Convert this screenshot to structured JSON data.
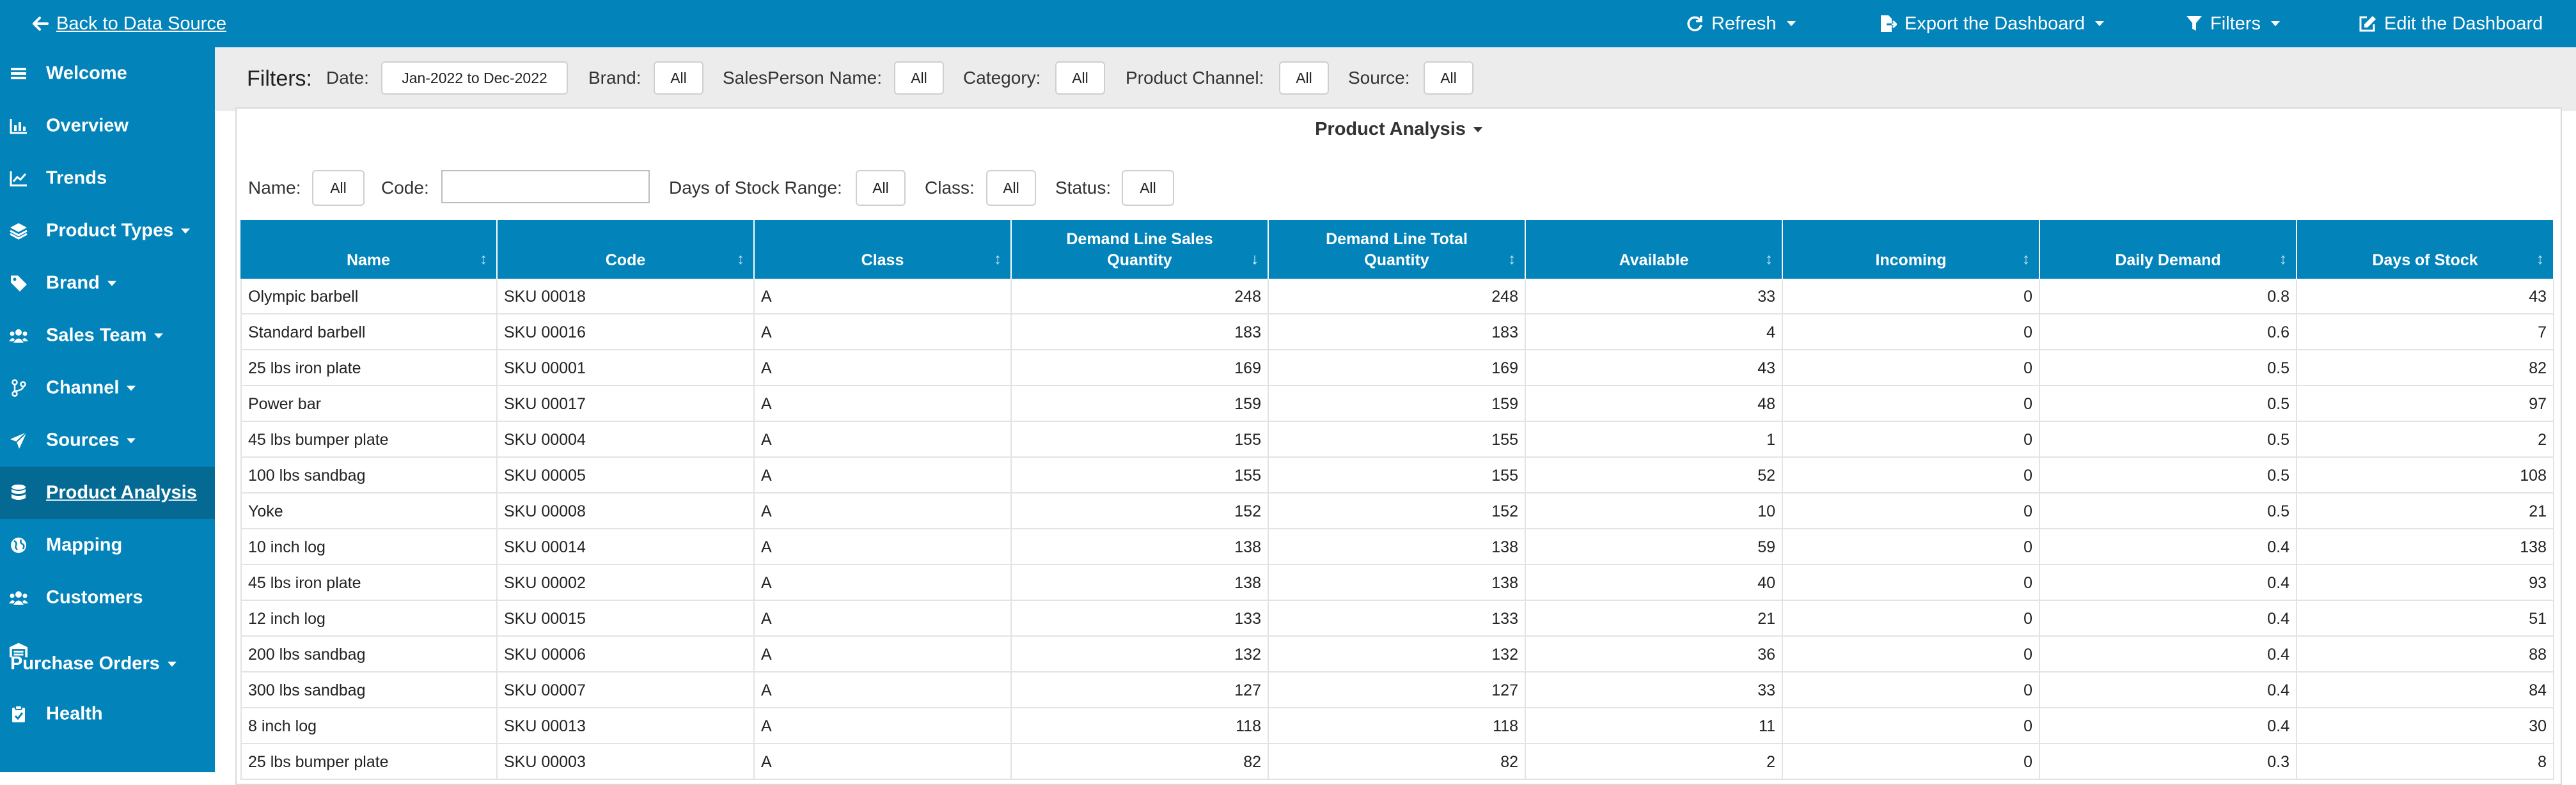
{
  "topbar": {
    "back_label": "Back to Data Source",
    "refresh_label": "Refresh",
    "export_label": "Export the Dashboard",
    "filters_label": "Filters",
    "edit_label": "Edit the Dashboard"
  },
  "sidebar": {
    "items": [
      {
        "label": "Welcome",
        "icon": "menu-icon"
      },
      {
        "label": "Overview",
        "icon": "chart-icon"
      },
      {
        "label": "Trends",
        "icon": "line-chart-icon"
      },
      {
        "label": "Product Types",
        "icon": "layers-icon",
        "caret": true
      },
      {
        "label": "Brand",
        "icon": "tag-icon",
        "caret": true
      },
      {
        "label": "Sales Team",
        "icon": "users-icon",
        "caret": true
      },
      {
        "label": "Channel",
        "icon": "branch-icon",
        "caret": true
      },
      {
        "label": "Sources",
        "icon": "send-icon",
        "caret": true
      },
      {
        "label": "Product Analysis",
        "icon": "database-icon",
        "active": true
      },
      {
        "label": "Mapping",
        "icon": "globe-icon"
      },
      {
        "label": "Customers",
        "icon": "users-icon"
      },
      {
        "label": "Purchase Orders",
        "icon": "warehouse-icon",
        "caret": true
      },
      {
        "label": "Health",
        "icon": "clipboard-icon"
      }
    ]
  },
  "filters": {
    "title": "Filters:",
    "date_label": "Date:",
    "date_value": "Jan-2022 to Dec-2022",
    "brand_label": "Brand:",
    "brand_value": "All",
    "salesperson_label": "SalesPerson Name:",
    "salesperson_value": "All",
    "category_label": "Category:",
    "category_value": "All",
    "channel_label": "Product Channel:",
    "channel_value": "All",
    "source_label": "Source:",
    "source_value": "All"
  },
  "panel": {
    "title": "Product Analysis",
    "name_label": "Name:",
    "name_value": "All",
    "code_label": "Code:",
    "code_value": "",
    "dsr_label": "Days of Stock Range:",
    "dsr_value": "All",
    "class_label": "Class:",
    "class_value": "All",
    "status_label": "Status:",
    "status_value": "All"
  },
  "table": {
    "headers": [
      "Name",
      "Code",
      "Class",
      "Demand Line Sales Quantity",
      "Demand Line Total Quantity",
      "Available",
      "Incoming",
      "Daily Demand",
      "Days of Stock"
    ],
    "sorted_column": 3,
    "rows": [
      [
        "Olympic barbell",
        "SKU 00018",
        "A",
        "248",
        "248",
        "33",
        "0",
        "0.8",
        "43"
      ],
      [
        "Standard barbell",
        "SKU 00016",
        "A",
        "183",
        "183",
        "4",
        "0",
        "0.6",
        "7"
      ],
      [
        "25 lbs iron plate",
        "SKU 00001",
        "A",
        "169",
        "169",
        "43",
        "0",
        "0.5",
        "82"
      ],
      [
        "Power bar",
        "SKU 00017",
        "A",
        "159",
        "159",
        "48",
        "0",
        "0.5",
        "97"
      ],
      [
        "45 lbs bumper plate",
        "SKU 00004",
        "A",
        "155",
        "155",
        "1",
        "0",
        "0.5",
        "2"
      ],
      [
        "100 lbs sandbag",
        "SKU 00005",
        "A",
        "155",
        "155",
        "52",
        "0",
        "0.5",
        "108"
      ],
      [
        "Yoke",
        "SKU 00008",
        "A",
        "152",
        "152",
        "10",
        "0",
        "0.5",
        "21"
      ],
      [
        "10 inch log",
        "SKU 00014",
        "A",
        "138",
        "138",
        "59",
        "0",
        "0.4",
        "138"
      ],
      [
        "45 lbs iron plate",
        "SKU 00002",
        "A",
        "138",
        "138",
        "40",
        "0",
        "0.4",
        "93"
      ],
      [
        "12 inch log",
        "SKU 00015",
        "A",
        "133",
        "133",
        "21",
        "0",
        "0.4",
        "51"
      ],
      [
        "200 lbs sandbag",
        "SKU 00006",
        "A",
        "132",
        "132",
        "36",
        "0",
        "0.4",
        "88"
      ],
      [
        "300 lbs sandbag",
        "SKU 00007",
        "A",
        "127",
        "127",
        "33",
        "0",
        "0.4",
        "84"
      ],
      [
        "8 inch log",
        "SKU 00013",
        "A",
        "118",
        "118",
        "11",
        "0",
        "0.4",
        "30"
      ],
      [
        "25 lbs bumper plate",
        "SKU 00003",
        "A",
        "82",
        "82",
        "2",
        "0",
        "0.3",
        "8"
      ]
    ]
  }
}
